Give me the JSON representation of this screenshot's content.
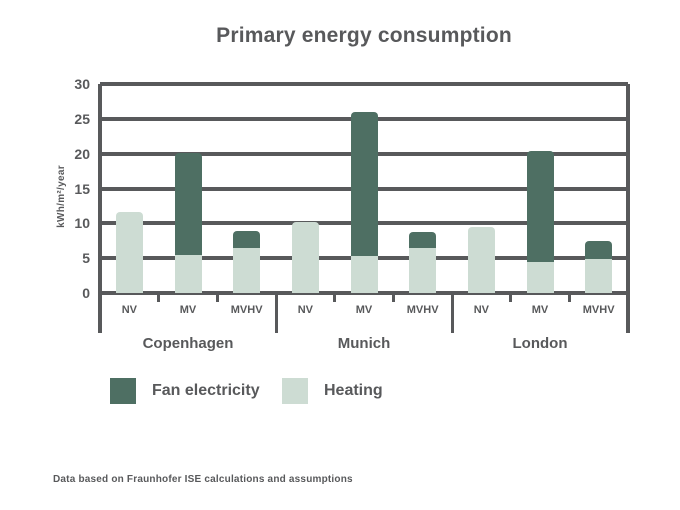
{
  "title": "Primary energy consumption",
  "y_axis": {
    "label": "kWh/m²/year",
    "ticks": [
      0,
      5,
      10,
      15,
      20,
      25,
      30
    ]
  },
  "chart_data": {
    "type": "bar",
    "stacked": true,
    "title": "Primary energy consumption",
    "ylabel": "kWh/m²/year",
    "ylim": [
      0,
      30
    ],
    "grid": true,
    "legend_position": "bottom-left",
    "groups": [
      "Copenhagen",
      "Munich",
      "London"
    ],
    "categories": [
      "NV",
      "MV",
      "MVHV"
    ],
    "series": [
      {
        "name": "Heating",
        "color": "#cddcd3",
        "values": [
          [
            11.7,
            5.4,
            6.5
          ],
          [
            10.2,
            5.3,
            6.4
          ],
          [
            9.5,
            4.4,
            4.9
          ]
        ]
      },
      {
        "name": "Fan electricity",
        "color": "#4e6f63",
        "values": [
          [
            0,
            14.7,
            2.4
          ],
          [
            0,
            20.7,
            2.4
          ],
          [
            0,
            16.0,
            2.5
          ]
        ]
      }
    ]
  },
  "legend": [
    {
      "label": "Fan electricity",
      "color": "#4e6f63"
    },
    {
      "label": "Heating",
      "color": "#cddcd3"
    }
  ],
  "footnote": "Data based on Fraunhofer ISE calculations and assumptions",
  "colors": {
    "axis": "#58595b",
    "text": "#58595b",
    "fan_electricity": "#4e6f63",
    "heating": "#cddcd3"
  }
}
